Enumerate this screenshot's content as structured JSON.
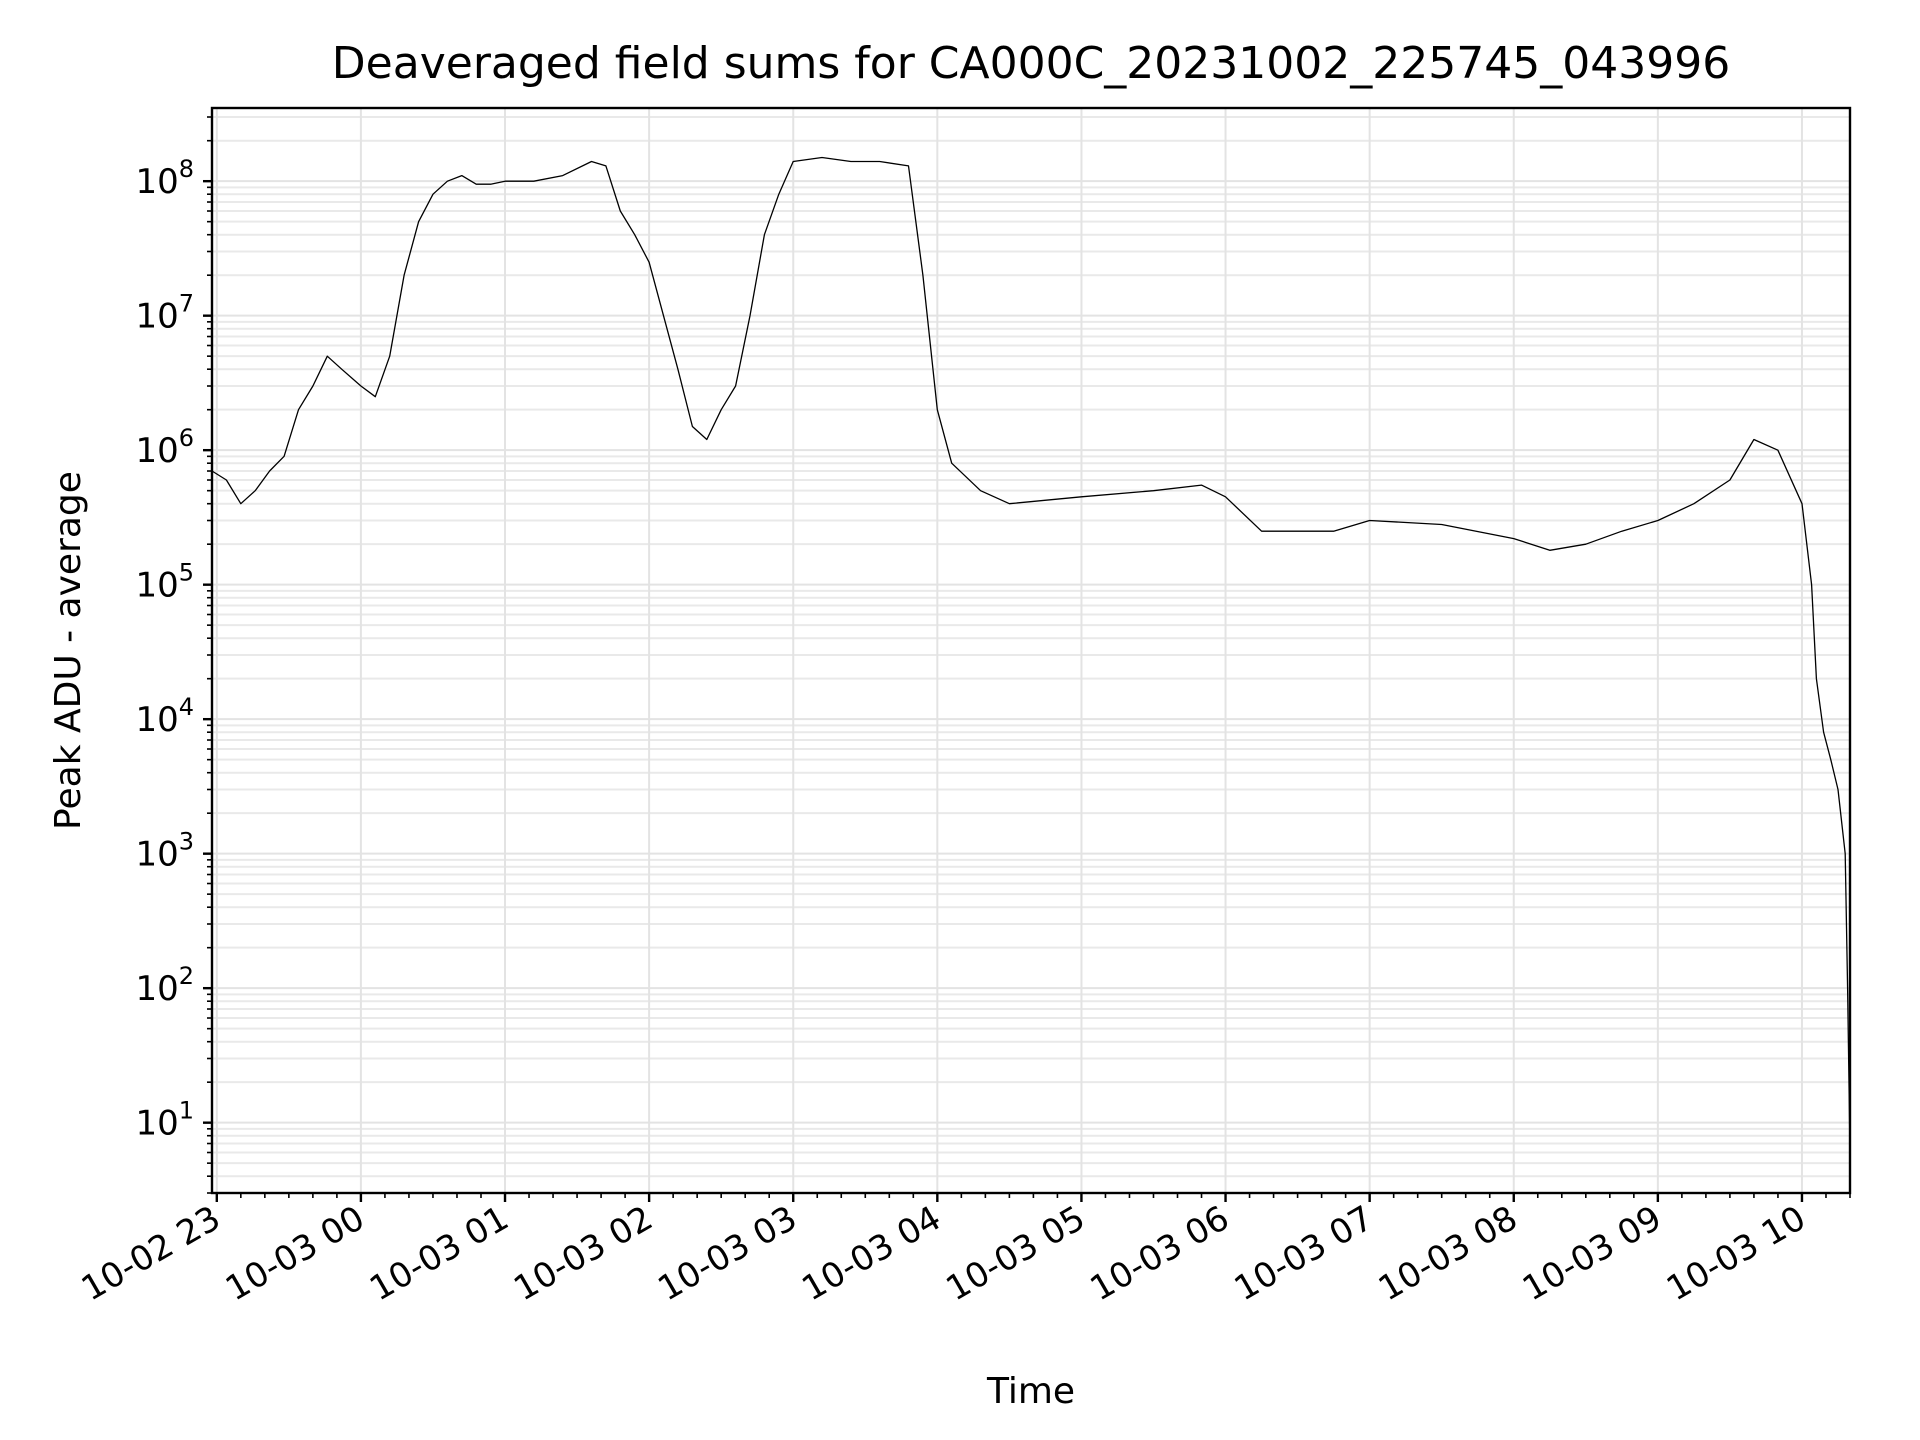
{
  "chart_data": {
    "type": "line",
    "title": "Deaveraged field sums for CA000C_20231002_225745_043996",
    "xlabel": "Time",
    "ylabel": "Peak ADU - average",
    "yscale": "log",
    "ylim": [
      3,
      350000000
    ],
    "xlim": [
      "2023-10-02 22:58",
      "2023-10-03 10:20"
    ],
    "grid": true,
    "x_ticks": [
      "10-02 23",
      "10-03 00",
      "10-03 01",
      "10-03 02",
      "10-03 03",
      "10-03 04",
      "10-03 05",
      "10-03 06",
      "10-03 07",
      "10-03 08",
      "10-03 09",
      "10-03 10"
    ],
    "y_ticks": [
      {
        "value": 10,
        "base": "10",
        "exp": "1"
      },
      {
        "value": 100,
        "base": "10",
        "exp": "2"
      },
      {
        "value": 1000,
        "base": "10",
        "exp": "3"
      },
      {
        "value": 10000,
        "base": "10",
        "exp": "4"
      },
      {
        "value": 100000,
        "base": "10",
        "exp": "5"
      },
      {
        "value": 1000000,
        "base": "10",
        "exp": "6"
      },
      {
        "value": 10000000,
        "base": "10",
        "exp": "7"
      },
      {
        "value": 100000000,
        "base": "10",
        "exp": "8"
      }
    ],
    "series": [
      {
        "color": "#000000",
        "points": [
          [
            "2023-10-02 22:58",
            700000
          ],
          [
            "2023-10-02 23:04",
            600000
          ],
          [
            "2023-10-02 23:10",
            400000
          ],
          [
            "2023-10-02 23:16",
            500000
          ],
          [
            "2023-10-02 23:22",
            700000
          ],
          [
            "2023-10-02 23:28",
            900000
          ],
          [
            "2023-10-02 23:34",
            2000000
          ],
          [
            "2023-10-02 23:40",
            3000000
          ],
          [
            "2023-10-02 23:46",
            5000000
          ],
          [
            "2023-10-02 23:52",
            4000000
          ],
          [
            "2023-10-03 00:00",
            3000000
          ],
          [
            "2023-10-03 00:06",
            2500000
          ],
          [
            "2023-10-03 00:12",
            5000000
          ],
          [
            "2023-10-03 00:18",
            20000000
          ],
          [
            "2023-10-03 00:24",
            50000000
          ],
          [
            "2023-10-03 00:30",
            80000000
          ],
          [
            "2023-10-03 00:36",
            100000000
          ],
          [
            "2023-10-03 00:42",
            110000000
          ],
          [
            "2023-10-03 00:48",
            95000000
          ],
          [
            "2023-10-03 00:54",
            95000000
          ],
          [
            "2023-10-03 01:00",
            100000000
          ],
          [
            "2023-10-03 01:12",
            100000000
          ],
          [
            "2023-10-03 01:24",
            110000000
          ],
          [
            "2023-10-03 01:36",
            140000000
          ],
          [
            "2023-10-03 01:42",
            130000000
          ],
          [
            "2023-10-03 01:48",
            60000000
          ],
          [
            "2023-10-03 01:54",
            40000000
          ],
          [
            "2023-10-03 02:00",
            25000000
          ],
          [
            "2023-10-03 02:06",
            10000000
          ],
          [
            "2023-10-03 02:12",
            4000000
          ],
          [
            "2023-10-03 02:18",
            1500000
          ],
          [
            "2023-10-03 02:24",
            1200000
          ],
          [
            "2023-10-03 02:30",
            2000000
          ],
          [
            "2023-10-03 02:36",
            3000000
          ],
          [
            "2023-10-03 02:42",
            10000000
          ],
          [
            "2023-10-03 02:48",
            40000000
          ],
          [
            "2023-10-03 02:54",
            80000000
          ],
          [
            "2023-10-03 03:00",
            140000000
          ],
          [
            "2023-10-03 03:12",
            150000000
          ],
          [
            "2023-10-03 03:24",
            140000000
          ],
          [
            "2023-10-03 03:36",
            140000000
          ],
          [
            "2023-10-03 03:48",
            130000000
          ],
          [
            "2023-10-03 03:54",
            20000000
          ],
          [
            "2023-10-03 04:00",
            2000000
          ],
          [
            "2023-10-03 04:06",
            800000
          ],
          [
            "2023-10-03 04:18",
            500000
          ],
          [
            "2023-10-03 04:30",
            400000
          ],
          [
            "2023-10-03 05:00",
            450000
          ],
          [
            "2023-10-03 05:30",
            500000
          ],
          [
            "2023-10-03 05:50",
            550000
          ],
          [
            "2023-10-03 06:00",
            450000
          ],
          [
            "2023-10-03 06:15",
            250000
          ],
          [
            "2023-10-03 06:45",
            250000
          ],
          [
            "2023-10-03 07:00",
            300000
          ],
          [
            "2023-10-03 07:30",
            280000
          ],
          [
            "2023-10-03 08:00",
            220000
          ],
          [
            "2023-10-03 08:15",
            180000
          ],
          [
            "2023-10-03 08:30",
            200000
          ],
          [
            "2023-10-03 08:45",
            250000
          ],
          [
            "2023-10-03 09:00",
            300000
          ],
          [
            "2023-10-03 09:15",
            400000
          ],
          [
            "2023-10-03 09:30",
            600000
          ],
          [
            "2023-10-03 09:40",
            1200000
          ],
          [
            "2023-10-03 09:50",
            1000000
          ],
          [
            "2023-10-03 10:00",
            400000
          ],
          [
            "2023-10-03 10:04",
            100000
          ],
          [
            "2023-10-03 10:06",
            20000
          ],
          [
            "2023-10-03 10:09",
            8000
          ],
          [
            "2023-10-03 10:12",
            5000
          ],
          [
            "2023-10-03 10:15",
            3000
          ],
          [
            "2023-10-03 10:18",
            1000
          ],
          [
            "2023-10-03 10:19",
            100
          ],
          [
            "2023-10-03 10:20",
            6
          ]
        ]
      }
    ]
  }
}
